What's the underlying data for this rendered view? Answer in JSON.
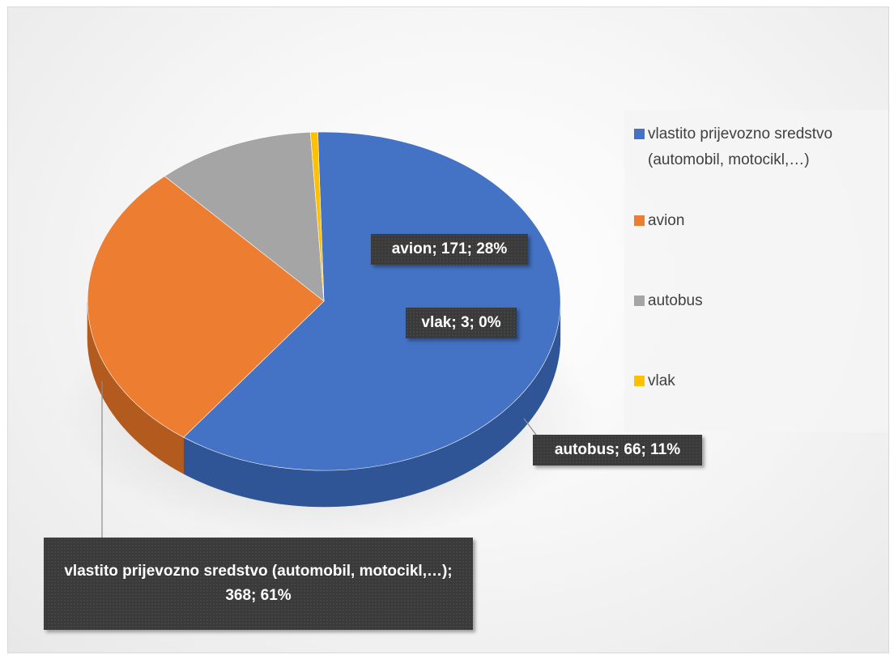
{
  "chart_data": {
    "type": "pie",
    "style": "3d",
    "title": "",
    "categories": [
      "vlastito prijevozno sredstvo (automobil, motocikl,…)",
      "avion",
      "autobus",
      "vlak"
    ],
    "values": [
      368,
      171,
      66,
      3
    ],
    "percents": [
      "61%",
      "28%",
      "11%",
      "0%"
    ],
    "colors": [
      "#4472c4",
      "#ed7d31",
      "#a5a5a5",
      "#ffc000"
    ],
    "legend": {
      "position": "right",
      "entries": [
        "vlastito prijevozno sredstvo (automobil, motocikl,…)",
        "avion",
        "autobus",
        "vlak"
      ]
    },
    "data_labels": [
      "vlastito prijevozno sredstvo (automobil, motocikl,…); 368; 61%",
      "avion; 171; 28%",
      "autobus; 66; 11%",
      "vlak; 3; 0%"
    ]
  }
}
